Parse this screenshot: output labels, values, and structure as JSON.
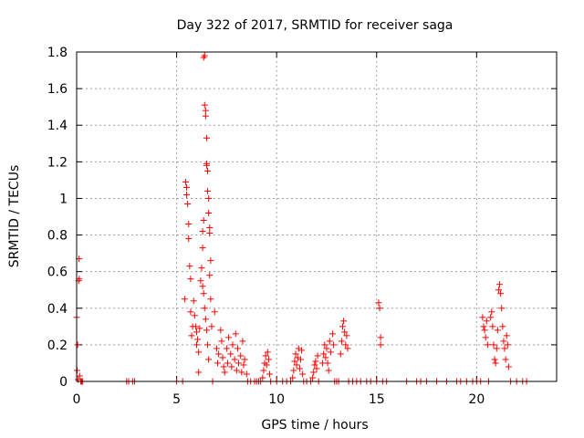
{
  "chart_data": {
    "type": "scatter",
    "title": "Day 322 of 2017, SRMTID for receiver saga",
    "xlabel": "GPS time / hours",
    "ylabel": "SRMTID / TECUs",
    "xlim": [
      0,
      24
    ],
    "ylim": [
      0,
      1.8
    ],
    "xticks": [
      0,
      5,
      10,
      15,
      20
    ],
    "yticks": [
      0,
      0.2,
      0.4,
      0.6,
      0.8,
      1,
      1.2,
      1.4,
      1.6,
      1.8
    ],
    "xtick_labels": [
      "0",
      "5",
      "10",
      "15",
      "20"
    ],
    "ytick_labels": [
      "0",
      "0.2",
      "0.4",
      "0.6",
      "0.8",
      "1",
      "1.2",
      "1.4",
      "1.6",
      "1.8"
    ],
    "grid": true,
    "marker": "+",
    "series": [
      {
        "name": "SRMTID",
        "color": "#ff0000",
        "points": [
          [
            0.0,
            0.35
          ],
          [
            0.02,
            0.06
          ],
          [
            0.05,
            0.2
          ],
          [
            0.07,
            0.01
          ],
          [
            0.1,
            0.55
          ],
          [
            0.12,
            0.67
          ],
          [
            0.13,
            0.56
          ],
          [
            0.15,
            0.03
          ],
          [
            0.2,
            0.0
          ],
          [
            0.25,
            0.0
          ],
          [
            0.3,
            0.0
          ],
          [
            2.5,
            0.0
          ],
          [
            2.6,
            0.0
          ],
          [
            2.8,
            0.0
          ],
          [
            2.9,
            0.0
          ],
          [
            5.0,
            0.0
          ],
          [
            5.3,
            0.0
          ],
          [
            5.4,
            0.45
          ],
          [
            5.45,
            1.09
          ],
          [
            5.5,
            1.06
          ],
          [
            5.5,
            1.02
          ],
          [
            5.55,
            0.97
          ],
          [
            5.6,
            0.86
          ],
          [
            5.6,
            0.78
          ],
          [
            5.65,
            0.63
          ],
          [
            5.7,
            0.56
          ],
          [
            5.7,
            0.38
          ],
          [
            5.75,
            0.25
          ],
          [
            5.8,
            0.3
          ],
          [
            5.85,
            0.44
          ],
          [
            5.9,
            0.36
          ],
          [
            5.95,
            0.3
          ],
          [
            6.0,
            0.27
          ],
          [
            6.0,
            0.2
          ],
          [
            6.05,
            0.23
          ],
          [
            6.1,
            0.16
          ],
          [
            6.1,
            0.05
          ],
          [
            6.15,
            0.29
          ],
          [
            6.2,
            0.55
          ],
          [
            6.25,
            0.62
          ],
          [
            6.3,
            0.73
          ],
          [
            6.3,
            0.82
          ],
          [
            6.35,
            0.88
          ],
          [
            6.35,
            1.77
          ],
          [
            6.4,
            1.78
          ],
          [
            6.4,
            1.51
          ],
          [
            6.45,
            1.48
          ],
          [
            6.45,
            1.45
          ],
          [
            6.5,
            1.33
          ],
          [
            6.5,
            1.19
          ],
          [
            6.5,
            1.18
          ],
          [
            6.55,
            1.15
          ],
          [
            6.55,
            1.04
          ],
          [
            6.6,
            1.0
          ],
          [
            6.6,
            0.92
          ],
          [
            6.65,
            0.84
          ],
          [
            6.65,
            0.81
          ],
          [
            6.3,
            0.52
          ],
          [
            6.35,
            0.48
          ],
          [
            6.4,
            0.4
          ],
          [
            6.45,
            0.34
          ],
          [
            6.5,
            0.28
          ],
          [
            6.55,
            0.2
          ],
          [
            6.6,
            0.12
          ],
          [
            6.65,
            0.58
          ],
          [
            6.7,
            0.66
          ],
          [
            6.7,
            0.45
          ],
          [
            6.75,
            0.3
          ],
          [
            6.8,
            0.0
          ],
          [
            6.9,
            0.38
          ],
          [
            7.0,
            0.18
          ],
          [
            7.05,
            0.1
          ],
          [
            7.1,
            0.15
          ],
          [
            7.2,
            0.28
          ],
          [
            7.25,
            0.22
          ],
          [
            7.3,
            0.13
          ],
          [
            7.35,
            0.08
          ],
          [
            7.4,
            0.05
          ],
          [
            7.5,
            0.18
          ],
          [
            7.55,
            0.1
          ],
          [
            7.6,
            0.24
          ],
          [
            7.7,
            0.15
          ],
          [
            7.75,
            0.08
          ],
          [
            7.8,
            0.2
          ],
          [
            7.9,
            0.12
          ],
          [
            7.95,
            0.26
          ],
          [
            8.0,
            0.06
          ],
          [
            8.05,
            0.18
          ],
          [
            8.1,
            0.1
          ],
          [
            8.2,
            0.14
          ],
          [
            8.25,
            0.05
          ],
          [
            8.3,
            0.22
          ],
          [
            8.35,
            0.09
          ],
          [
            8.4,
            0.12
          ],
          [
            8.5,
            0.04
          ],
          [
            8.55,
            0.0
          ],
          [
            8.7,
            0.0
          ],
          [
            8.9,
            0.0
          ],
          [
            9.0,
            0.0
          ],
          [
            9.1,
            0.0
          ],
          [
            9.2,
            0.0
          ],
          [
            9.3,
            0.02
          ],
          [
            9.35,
            0.06
          ],
          [
            9.4,
            0.1
          ],
          [
            9.45,
            0.14
          ],
          [
            9.5,
            0.09
          ],
          [
            9.55,
            0.16
          ],
          [
            9.6,
            0.12
          ],
          [
            9.65,
            0.04
          ],
          [
            9.7,
            0.0
          ],
          [
            10.0,
            0.0
          ],
          [
            10.3,
            0.0
          ],
          [
            10.5,
            0.0
          ],
          [
            10.7,
            0.0
          ],
          [
            10.8,
            0.02
          ],
          [
            10.85,
            0.06
          ],
          [
            10.9,
            0.11
          ],
          [
            10.95,
            0.15
          ],
          [
            11.0,
            0.09
          ],
          [
            11.05,
            0.13
          ],
          [
            11.1,
            0.18
          ],
          [
            11.15,
            0.07
          ],
          [
            11.2,
            0.12
          ],
          [
            11.25,
            0.17
          ],
          [
            11.3,
            0.04
          ],
          [
            11.35,
            0.0
          ],
          [
            11.5,
            0.0
          ],
          [
            11.7,
            0.0
          ],
          [
            11.8,
            0.02
          ],
          [
            11.85,
            0.05
          ],
          [
            11.9,
            0.09
          ],
          [
            11.95,
            0.11
          ],
          [
            12.0,
            0.07
          ],
          [
            12.05,
            0.14
          ],
          [
            12.1,
            0.0
          ],
          [
            12.3,
            0.1
          ],
          [
            12.35,
            0.15
          ],
          [
            12.4,
            0.2
          ],
          [
            12.45,
            0.13
          ],
          [
            12.5,
            0.18
          ],
          [
            12.55,
            0.1
          ],
          [
            12.6,
            0.06
          ],
          [
            12.65,
            0.22
          ],
          [
            12.7,
            0.16
          ],
          [
            12.8,
            0.26
          ],
          [
            12.85,
            0.2
          ],
          [
            12.9,
            0.0
          ],
          [
            13.0,
            0.0
          ],
          [
            13.1,
            0.0
          ],
          [
            13.2,
            0.15
          ],
          [
            13.25,
            0.22
          ],
          [
            13.3,
            0.3
          ],
          [
            13.35,
            0.33
          ],
          [
            13.4,
            0.27
          ],
          [
            13.45,
            0.2
          ],
          [
            13.5,
            0.25
          ],
          [
            13.55,
            0.18
          ],
          [
            13.6,
            0.0
          ],
          [
            13.8,
            0.0
          ],
          [
            14.0,
            0.0
          ],
          [
            14.2,
            0.0
          ],
          [
            14.5,
            0.0
          ],
          [
            14.7,
            0.0
          ],
          [
            15.0,
            0.0
          ],
          [
            15.1,
            0.43
          ],
          [
            15.15,
            0.4
          ],
          [
            15.2,
            0.24
          ],
          [
            15.2,
            0.2
          ],
          [
            15.3,
            0.0
          ],
          [
            15.5,
            0.0
          ],
          [
            16.5,
            0.0
          ],
          [
            17.0,
            0.0
          ],
          [
            17.2,
            0.0
          ],
          [
            17.5,
            0.0
          ],
          [
            18.0,
            0.0
          ],
          [
            18.5,
            0.0
          ],
          [
            19.0,
            0.0
          ],
          [
            19.2,
            0.0
          ],
          [
            19.5,
            0.0
          ],
          [
            19.8,
            0.0
          ],
          [
            20.0,
            0.0
          ],
          [
            20.2,
            0.0
          ],
          [
            20.3,
            0.35
          ],
          [
            20.35,
            0.3
          ],
          [
            20.4,
            0.28
          ],
          [
            20.45,
            0.24
          ],
          [
            20.5,
            0.33
          ],
          [
            20.55,
            0.2
          ],
          [
            20.6,
            0.0
          ],
          [
            20.7,
            0.35
          ],
          [
            20.75,
            0.38
          ],
          [
            20.8,
            0.3
          ],
          [
            20.85,
            0.2
          ],
          [
            20.9,
            0.12
          ],
          [
            20.95,
            0.1
          ],
          [
            21.0,
            0.18
          ],
          [
            21.05,
            0.28
          ],
          [
            21.1,
            0.5
          ],
          [
            21.15,
            0.53
          ],
          [
            21.2,
            0.48
          ],
          [
            21.25,
            0.4
          ],
          [
            21.3,
            0.3
          ],
          [
            21.35,
            0.22
          ],
          [
            21.4,
            0.18
          ],
          [
            21.45,
            0.12
          ],
          [
            21.5,
            0.25
          ],
          [
            21.55,
            0.2
          ],
          [
            21.6,
            0.08
          ],
          [
            21.7,
            0.0
          ],
          [
            22.0,
            0.0
          ],
          [
            22.3,
            0.0
          ],
          [
            22.5,
            0.0
          ]
        ]
      }
    ]
  }
}
